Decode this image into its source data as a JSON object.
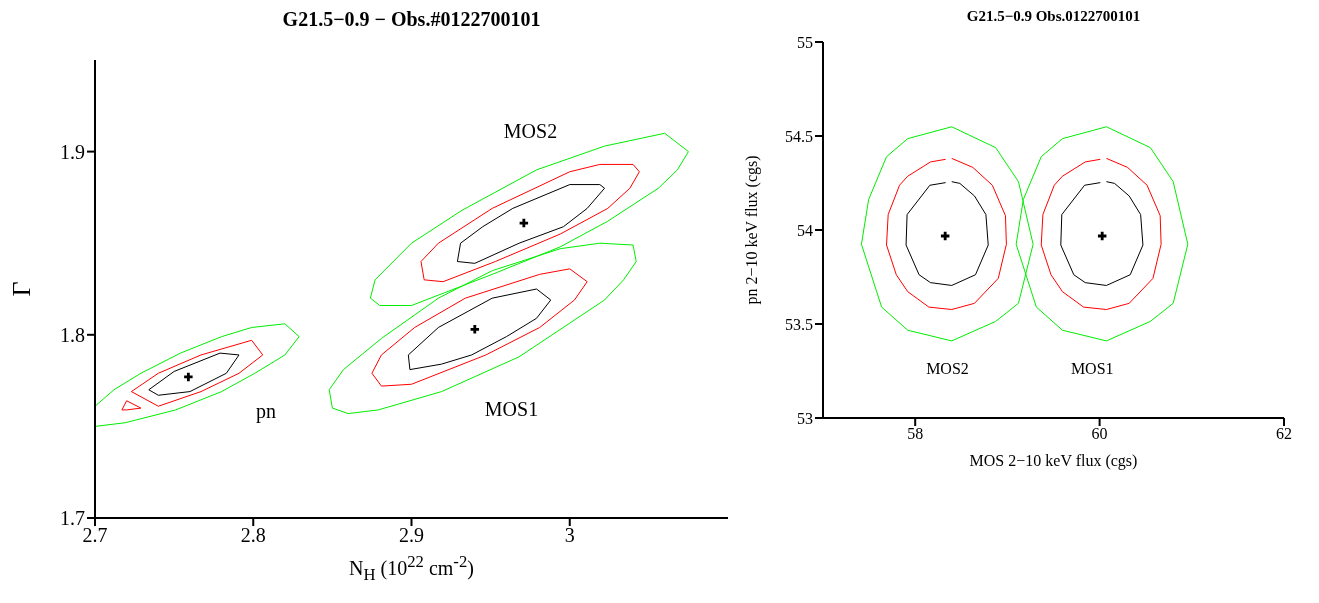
{
  "chart_data": [
    {
      "type": "line",
      "title": "G21.5−0.9 − Obs.#0122700101",
      "xlabel": "N$_{H}$ (10$^{22}$ cm$^{-2}$)",
      "ylabel": "Γ",
      "xlim": [
        2.7,
        3.1
      ],
      "ylim": [
        1.7,
        1.95
      ],
      "xticks": [
        2.7,
        2.8,
        2.9,
        3
      ],
      "yticks": [
        1.7,
        1.8,
        1.9
      ],
      "series": [
        {
          "color": "#00ee00",
          "x": [
            2.7,
            2.712,
            2.729,
            2.754,
            2.78,
            2.799,
            2.82,
            2.829,
            2.82,
            2.801,
            2.78,
            2.751,
            2.719,
            2.7
          ],
          "values": [
            1.761,
            1.77,
            1.779,
            1.79,
            1.799,
            1.804,
            1.806,
            1.799,
            1.789,
            1.779,
            1.769,
            1.759,
            1.752,
            1.75
          ]
        },
        {
          "color": "#ff0000",
          "x": [
            2.723,
            2.74,
            2.767,
            2.799,
            2.806
          ],
          "values": [
            1.769,
            1.779,
            1.789,
            1.797,
            1.789
          ]
        },
        {
          "color": "#ff0000",
          "x": [
            2.806,
            2.791,
            2.767,
            2.74,
            2.723
          ],
          "values": [
            1.789,
            1.779,
            1.769,
            1.761,
            1.769
          ]
        },
        {
          "color": "#ff0000",
          "x": [
            2.729,
            2.72,
            2.717
          ],
          "values": [
            1.76,
            1.764,
            1.759
          ]
        },
        {
          "color": "#ff0000",
          "x": [
            2.717,
            2.72,
            2.729
          ],
          "values": [
            1.759,
            1.759,
            1.76
          ]
        },
        {
          "color": "#000000",
          "x": [
            2.734,
            2.75,
            2.779,
            2.791
          ],
          "values": [
            1.77,
            1.78,
            1.79,
            1.789
          ]
        },
        {
          "color": "#000000",
          "x": [
            2.791,
            2.783,
            2.76,
            2.74,
            2.734
          ],
          "values": [
            1.789,
            1.779,
            1.769,
            1.767,
            1.77
          ]
        },
        {
          "color": "#00ee00",
          "x": [
            2.874,
            2.877,
            2.9,
            2.932,
            2.979,
            3.022,
            3.06,
            3.075
          ],
          "values": [
            1.82,
            1.83,
            1.85,
            1.868,
            1.89,
            1.903,
            1.91,
            1.9
          ]
        },
        {
          "color": "#00ee00",
          "x": [
            3.075,
            3.068,
            3.056,
            3.024,
            2.994,
            2.951,
            2.921,
            2.9,
            2.88,
            2.874
          ],
          "values": [
            1.9,
            1.89,
            1.88,
            1.862,
            1.848,
            1.833,
            1.823,
            1.816,
            1.816,
            1.82
          ]
        },
        {
          "color": "#ff0000",
          "x": [
            2.906,
            2.917,
            2.951,
            3,
            3.019,
            3.04,
            3.044
          ],
          "values": [
            1.84,
            1.85,
            1.869,
            1.889,
            1.893,
            1.893,
            1.889
          ]
        },
        {
          "color": "#ff0000",
          "x": [
            3.044,
            3.038,
            3.024,
            2.994,
            2.953,
            2.92,
            2.908,
            2.906
          ],
          "values": [
            1.889,
            1.88,
            1.869,
            1.855,
            1.84,
            1.829,
            1.83,
            1.84
          ]
        },
        {
          "color": "#000000",
          "x": [
            2.929,
            2.931,
            2.945,
            2.964,
            3,
            3.019,
            3.022
          ],
          "values": [
            1.84,
            1.85,
            1.859,
            1.869,
            1.882,
            1.882,
            1.88
          ]
        },
        {
          "color": "#000000",
          "x": [
            3.022,
            3.011,
            2.996,
            2.968,
            2.94,
            2.929
          ],
          "values": [
            1.88,
            1.869,
            1.859,
            1.85,
            1.839,
            1.84
          ]
        },
        {
          "color": "#00ee00",
          "x": [
            2.848,
            2.85,
            2.86,
            2.879,
            2.919,
            2.968,
            3.022,
            3.034,
            3.042
          ],
          "values": [
            1.77,
            1.76,
            1.757,
            1.759,
            1.769,
            1.788,
            1.819,
            1.83,
            1.84
          ]
        },
        {
          "color": "#00ee00",
          "x": [
            3.042,
            3.04,
            3.019,
            2.994,
            2.951,
            2.917,
            2.881,
            2.857,
            2.848
          ],
          "values": [
            1.84,
            1.849,
            1.85,
            1.847,
            1.835,
            1.82,
            1.798,
            1.781,
            1.77
          ]
        },
        {
          "color": "#ff0000",
          "x": [
            2.875,
            2.881,
            2.902,
            2.934,
            2.981,
            3,
            3.011
          ],
          "values": [
            1.779,
            1.789,
            1.804,
            1.82,
            1.833,
            1.836,
            1.829
          ]
        },
        {
          "color": "#ff0000",
          "x": [
            3.011,
            3.003,
            2.981,
            2.947,
            2.9,
            2.881,
            2.875
          ],
          "values": [
            1.829,
            1.819,
            1.804,
            1.789,
            1.773,
            1.772,
            1.779
          ]
        },
        {
          "color": "#000000",
          "x": [
            2.898,
            2.917,
            2.951,
            2.979,
            2.988
          ],
          "values": [
            1.789,
            1.804,
            1.82,
            1.825,
            1.819
          ]
        },
        {
          "color": "#000000",
          "x": [
            2.988,
            2.979,
            2.96,
            2.938,
            2.919,
            2.899,
            2.898
          ],
          "values": [
            1.819,
            1.809,
            1.799,
            1.789,
            1.784,
            1.781,
            1.789
          ]
        },
        {
          "type": "scatter",
          "marker": "cross",
          "color": "#000000",
          "x": [
            2.759,
            2.971,
            2.94
          ],
          "values": [
            1.777,
            1.861,
            1.803
          ]
        }
      ],
      "annotations": [
        "pn",
        "MOS2",
        "MOS1"
      ]
    },
    {
      "type": "line",
      "title": "G21.5−0.9 Obs.0122700101",
      "xlabel": "MOS 2−10 keV flux (cgs)",
      "ylabel": "pn 2−10 keV flux (cgs)",
      "xlim": [
        57,
        62
      ],
      "ylim": [
        53,
        55
      ],
      "xticks": [
        58,
        60,
        62
      ],
      "yticks": [
        53,
        53.5,
        54,
        54.5,
        55
      ],
      "series": [
        {
          "color": "#00ee00",
          "x": [
            58.396,
            58.873,
            59.12,
            59.279,
            59.12,
            58.873,
            58.396
          ],
          "values": [
            54.549,
            54.438,
            54.257,
            53.924,
            53.61,
            53.514,
            53.41
          ]
        },
        {
          "color": "#00ee00",
          "x": [
            58.396,
            57.919,
            57.636,
            57.417,
            57.495,
            57.689,
            57.919,
            58.396
          ],
          "values": [
            53.41,
            53.467,
            53.59,
            53.924,
            54.162,
            54.39,
            54.486,
            54.549
          ]
        },
        {
          "color": "#ff0000",
          "x": [
            58.396,
            58.625,
            58.837,
            58.979,
            58.989,
            58.901,
            58.643,
            58.396,
            58.148,
            57.919,
            57.795,
            57.689,
            57.707,
            57.83,
            57.919,
            58.166,
            58.33
          ],
          "values": [
            54.381,
            54.333,
            54.238,
            54.076,
            53.924,
            53.743,
            53.61,
            53.577,
            53.59,
            53.672,
            53.762,
            53.92,
            54.082,
            54.238,
            54.286,
            54.362,
            54.376
          ]
        },
        {
          "color": "#000000",
          "x": [
            58.396,
            58.484,
            58.643,
            58.767,
            58.792,
            58.654,
            58.396,
            58.166,
            58.042,
            57.901,
            57.912,
            58.159,
            58.33
          ],
          "values": [
            54.257,
            54.248,
            54.181,
            54.082,
            53.92,
            53.762,
            53.705,
            53.72,
            53.762,
            53.92,
            54.082,
            54.238,
            54.252
          ]
        },
        {
          "color": "#00ee00",
          "x": [
            60.074,
            60.551,
            60.798,
            60.957,
            60.798,
            60.551,
            60.074
          ],
          "values": [
            54.549,
            54.438,
            54.257,
            53.924,
            53.61,
            53.514,
            53.41
          ]
        },
        {
          "color": "#00ee00",
          "x": [
            60.074,
            59.597,
            59.314,
            59.095,
            59.173,
            59.367,
            59.597,
            60.074
          ],
          "values": [
            53.41,
            53.467,
            53.59,
            53.924,
            54.162,
            54.39,
            54.486,
            54.549
          ]
        },
        {
          "color": "#ff0000",
          "x": [
            60.074,
            60.303,
            60.515,
            60.657,
            60.667,
            60.579,
            60.321,
            60.074,
            59.826,
            59.597,
            59.473,
            59.367,
            59.385,
            59.508,
            59.597,
            59.844,
            60.008
          ],
          "values": [
            54.381,
            54.333,
            54.238,
            54.076,
            53.924,
            53.743,
            53.61,
            53.577,
            53.59,
            53.672,
            53.762,
            53.92,
            54.082,
            54.238,
            54.286,
            54.362,
            54.376
          ]
        },
        {
          "color": "#000000",
          "x": [
            60.074,
            60.162,
            60.321,
            60.445,
            60.47,
            60.332,
            60.074,
            59.844,
            59.72,
            59.579,
            59.59,
            59.837,
            60.008
          ],
          "values": [
            54.257,
            54.248,
            54.181,
            54.082,
            53.92,
            53.762,
            53.705,
            53.72,
            53.762,
            53.92,
            54.082,
            54.238,
            54.252
          ]
        },
        {
          "type": "scatter",
          "marker": "cross",
          "color": "#000000",
          "x": [
            58.325,
            60.028
          ],
          "values": [
            53.968,
            53.968
          ]
        }
      ],
      "annotations": [
        "MOS2",
        "MOS1"
      ]
    }
  ]
}
